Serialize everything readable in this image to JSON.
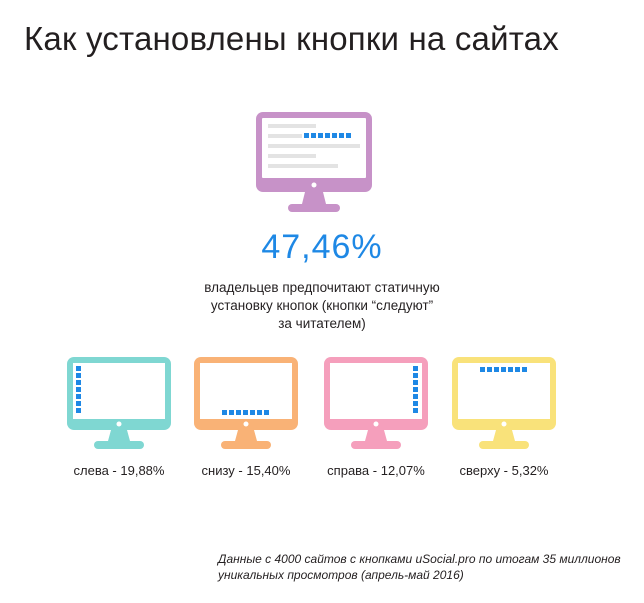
{
  "title": "Как установлены кнопки на сайтах",
  "main": {
    "percent": "47,46%",
    "description_lines": [
      "владельцев предпочитают статичную",
      "установку кнопок (кнопки “следуют”",
      "за читателем)"
    ]
  },
  "placements": [
    {
      "label": "слева - 19,88%",
      "position": "left"
    },
    {
      "label": "снизу - 15,40%",
      "position": "bottom"
    },
    {
      "label": "справа - 12,07%",
      "position": "right"
    },
    {
      "label": "сверху - 5,32%",
      "position": "top"
    }
  ],
  "footnote_lines": [
    "Данные с 4000 сайтов с кнопками uSocial.pro по итогам 35 миллионов",
    "уникальных просмотров (апрель-май 2016)"
  ],
  "colors": {
    "title": "#231f20",
    "accent_blue": "#1e88e5",
    "main_monitor": "#c792c8",
    "monitor_left": "#7fd7d2",
    "monitor_bottom": "#f9b276",
    "monitor_right": "#f59fbc",
    "monitor_top": "#f9e27a",
    "content_bar": "#e3e3e3"
  }
}
